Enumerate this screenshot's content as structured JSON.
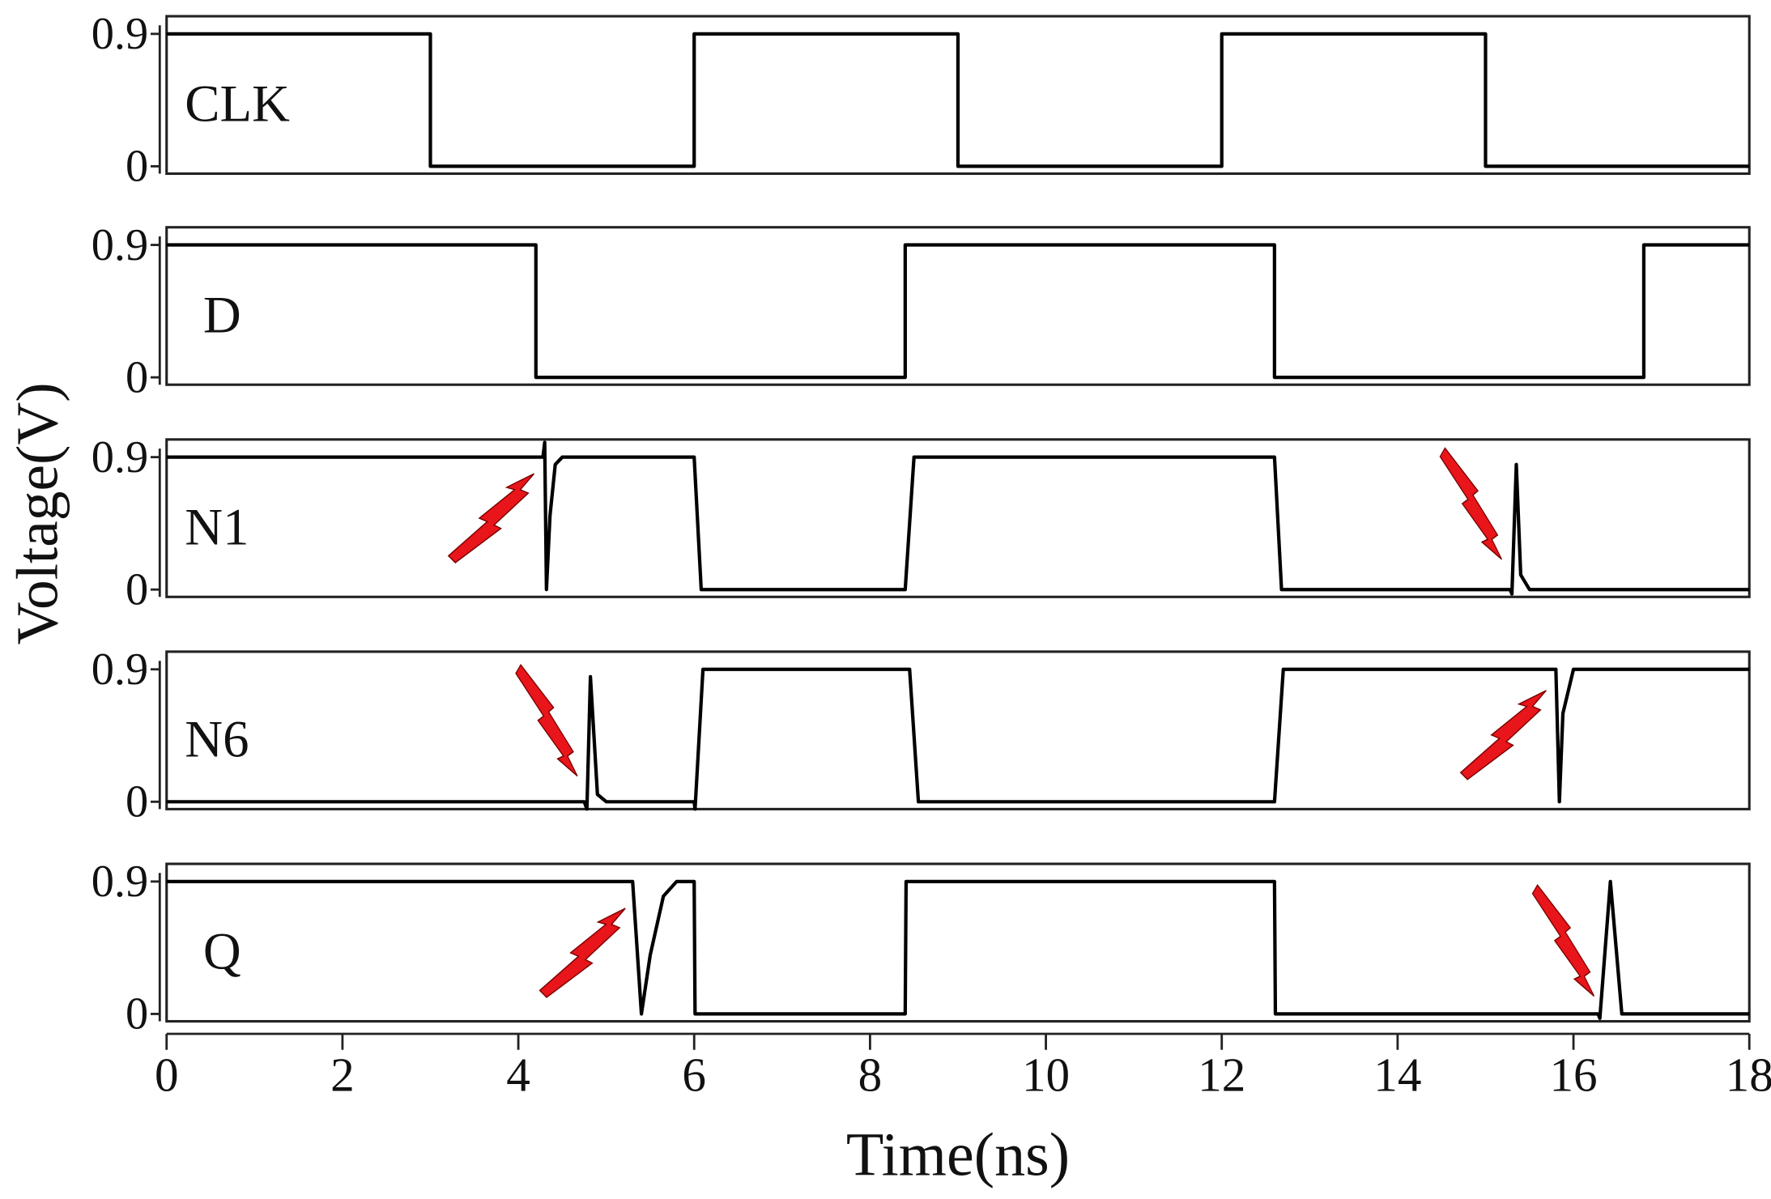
{
  "chart_data": [
    {
      "type": "line",
      "label": "CLK",
      "ylabel": "Voltage(V)",
      "color": "#000000",
      "x": [
        0,
        3,
        3,
        6,
        6,
        9,
        9,
        12,
        12,
        15,
        15,
        18
      ],
      "values": [
        0.9,
        0.9,
        0,
        0,
        0.9,
        0.9,
        0,
        0,
        0.9,
        0.9,
        0,
        0
      ],
      "xlim": [
        0,
        18
      ],
      "ylim": [
        -0.05,
        1.02
      ],
      "yticks": [
        0,
        0.9
      ]
    },
    {
      "type": "line",
      "label": "D",
      "color": "#000000",
      "x": [
        0,
        4.2,
        4.2,
        8.4,
        8.4,
        12.6,
        12.6,
        16.8,
        16.8,
        18
      ],
      "values": [
        0.9,
        0.9,
        0,
        0,
        0.9,
        0.9,
        0,
        0,
        0.9,
        0.9
      ],
      "xlim": [
        0,
        18
      ],
      "ylim": [
        -0.05,
        1.02
      ],
      "yticks": [
        0,
        0.9
      ]
    },
    {
      "type": "line",
      "label": "N1",
      "color": "#000000",
      "x": [
        0,
        4.28,
        4.3,
        4.32,
        4.36,
        4.42,
        4.5,
        6.0,
        6.08,
        8.4,
        8.5,
        12.6,
        12.68,
        15.28,
        15.3,
        15.35,
        15.4,
        15.5,
        18
      ],
      "values": [
        0.9,
        0.9,
        1.0,
        0,
        0.5,
        0.85,
        0.9,
        0.9,
        0,
        0,
        0.9,
        0.9,
        0,
        0,
        -0.03,
        0.85,
        0.1,
        0,
        0
      ],
      "xlim": [
        0,
        18
      ],
      "ylim": [
        -0.05,
        1.02
      ],
      "yticks": [
        0,
        0.9
      ]
    },
    {
      "type": "line",
      "label": "N6",
      "color": "#000000",
      "x": [
        0,
        4.75,
        4.78,
        4.82,
        4.9,
        5.0,
        6.0,
        6.01,
        6.1,
        8.45,
        8.55,
        12.6,
        12.7,
        15.8,
        15.84,
        15.88,
        16.0,
        18
      ],
      "values": [
        0,
        0,
        -0.05,
        0.85,
        0.05,
        0,
        0,
        -0.05,
        0.9,
        0.9,
        0,
        0,
        0.9,
        0.9,
        0,
        0.6,
        0.9,
        0.9
      ],
      "xlim": [
        0,
        18
      ],
      "ylim": [
        -0.05,
        1.02
      ],
      "yticks": [
        0,
        0.9
      ]
    },
    {
      "type": "line",
      "label": "Q",
      "color": "#000000",
      "xlabel": "Time(ns)",
      "x": [
        0,
        5.3,
        5.4,
        5.5,
        5.65,
        5.8,
        6.0,
        6.01,
        8.4,
        8.41,
        12.6,
        12.61,
        16.28,
        16.3,
        16.42,
        16.55,
        18
      ],
      "values": [
        0.9,
        0.9,
        0,
        0.4,
        0.8,
        0.9,
        0.9,
        0,
        0,
        0.9,
        0.9,
        0,
        0,
        -0.03,
        0.9,
        0,
        0
      ],
      "xlim": [
        0,
        18
      ],
      "ylim": [
        -0.05,
        1.02
      ],
      "yticks": [
        0,
        0.9
      ],
      "xticks": [
        0,
        2,
        4,
        6,
        8,
        10,
        12,
        14,
        16,
        18
      ]
    }
  ]
}
